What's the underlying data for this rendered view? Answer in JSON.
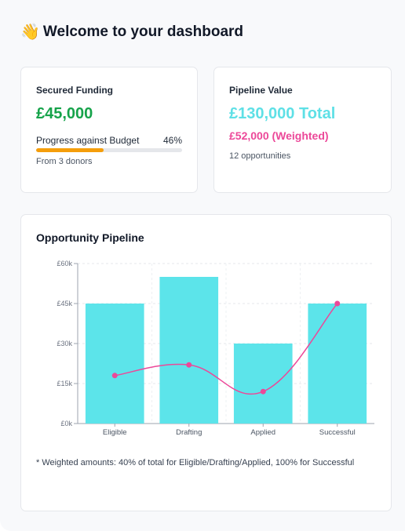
{
  "header": {
    "wave_emoji": "👋",
    "title": "Welcome to your dashboard"
  },
  "funding_card": {
    "label": "Secured Funding",
    "amount": "£45,000",
    "progress_label": "Progress against Budget",
    "progress_percent_text": "46%",
    "progress_value": 0.46,
    "donors_text": "From 3 donors",
    "colors": {
      "amount": "#16a34a",
      "progress": "#f59e0b"
    }
  },
  "pipeline_card": {
    "label": "Pipeline Value",
    "total": "£130,000 Total",
    "weighted": "£52,000 (Weighted)",
    "opportunities_text": "12 opportunities",
    "colors": {
      "total": "#5ee0e6",
      "weighted": "#ec4899"
    }
  },
  "chart_card": {
    "title": "Opportunity Pipeline",
    "footnote": "* Weighted amounts: 40% of total for Eligible/Drafting/Applied, 100% for Successful"
  },
  "chart_data": {
    "type": "bar",
    "title": "Opportunity Pipeline",
    "categories": [
      "Eligible",
      "Drafting",
      "Applied",
      "Successful"
    ],
    "series": [
      {
        "values": [
          45000,
          55000,
          30000,
          45000
        ],
        "kind": "bar",
        "color": "#5ce4ea"
      },
      {
        "values": [
          18000,
          22000,
          12000,
          45000
        ],
        "kind": "line",
        "color": "#ec4899"
      }
    ],
    "ylim": [
      0,
      60000
    ],
    "yticks": [
      0,
      15000,
      30000,
      45000,
      60000
    ],
    "ytick_labels": [
      "£0k",
      "£15k",
      "£30k",
      "£45k",
      "£60k"
    ],
    "grid": true,
    "xlabel": "",
    "ylabel": ""
  }
}
